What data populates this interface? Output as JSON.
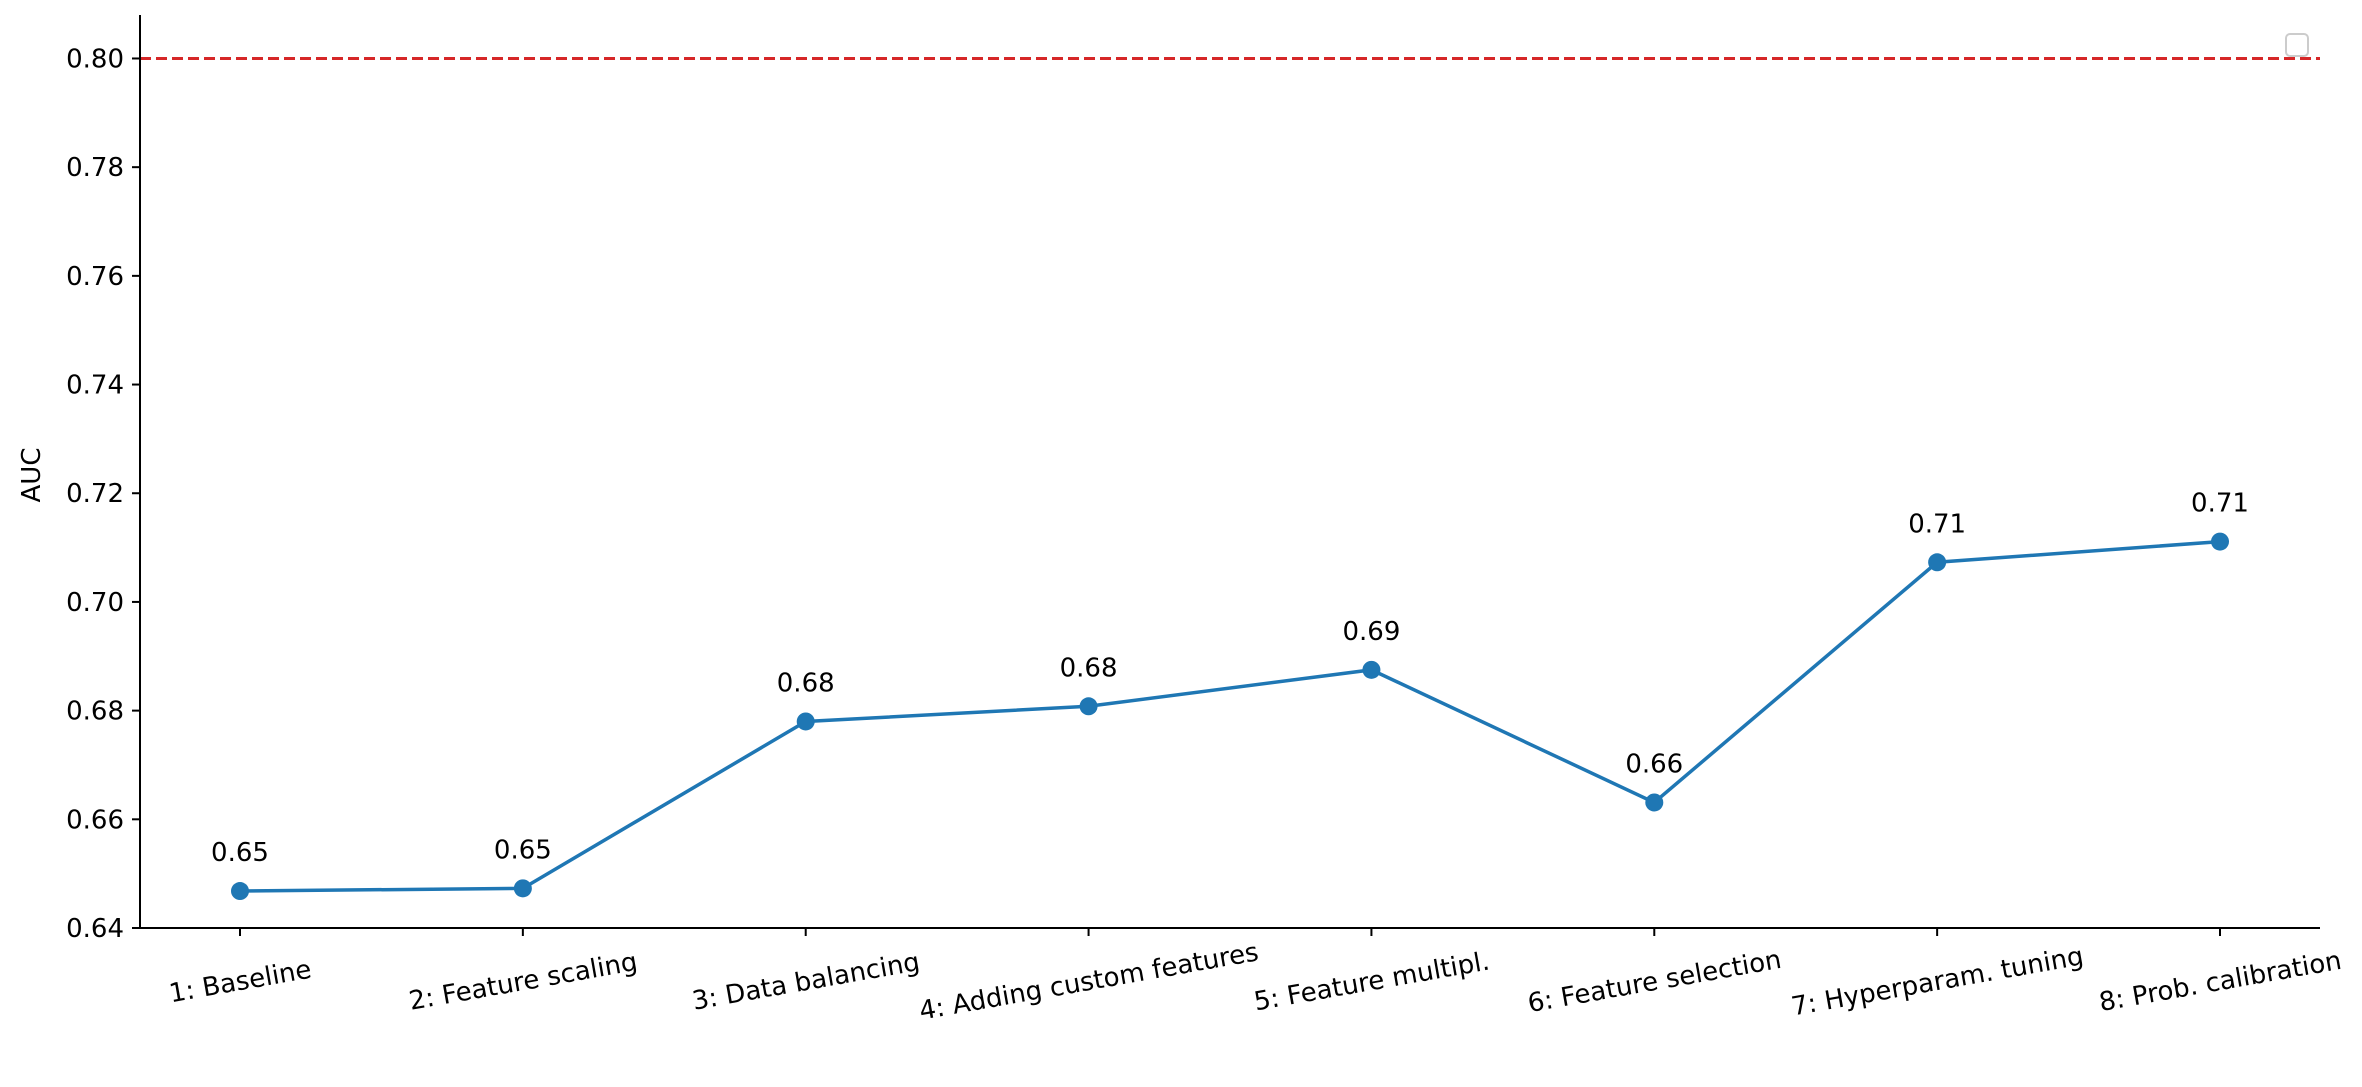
{
  "chart_data": {
    "type": "line",
    "categories": [
      "1: Baseline",
      "2: Feature scaling",
      "3: Data balancing",
      "4: Adding custom features",
      "5: Feature multipl.",
      "6: Feature selection",
      "7: Hyperparam. tuning",
      "8: Prob. calibration"
    ],
    "series": [
      {
        "values": [
          0.6468,
          0.6473,
          0.678,
          0.6808,
          0.6875,
          0.6631,
          0.7073,
          0.7111
        ],
        "data_labels": [
          "0.65",
          "0.65",
          "0.68",
          "0.68",
          "0.69",
          "0.66",
          "0.71",
          "0.71"
        ],
        "color": "#1f77b4"
      }
    ],
    "reference_line": {
      "value": 0.8,
      "color": "#d62728",
      "style": "dashed"
    },
    "xlabel": "",
    "ylabel": "AUC",
    "ylim": [
      0.64,
      0.808
    ],
    "yticks": [
      0.64,
      0.66,
      0.68,
      0.7,
      0.72,
      0.74,
      0.76,
      0.78,
      0.8
    ],
    "ytick_labels": [
      "0.64",
      "0.66",
      "0.68",
      "0.70",
      "0.72",
      "0.74",
      "0.76",
      "0.78",
      "0.80"
    ],
    "grid": false,
    "legend": {
      "placement": "top-right",
      "entries": []
    }
  }
}
